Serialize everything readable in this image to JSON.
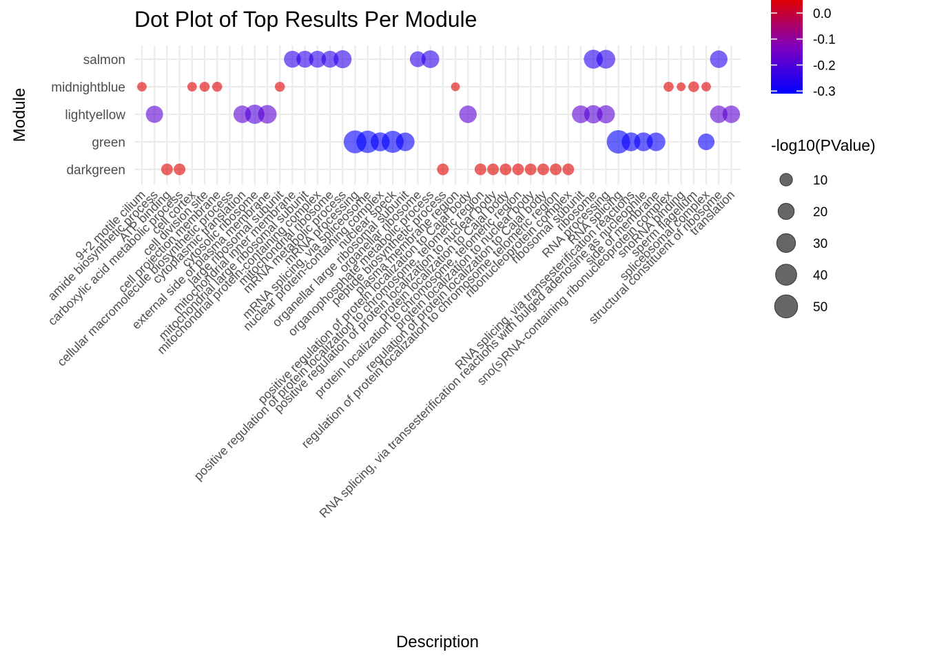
{
  "chart_data": {
    "type": "scatter",
    "title": "Dot Plot of Top Results Per Module",
    "xlabel": "Description",
    "ylabel": "Module",
    "modules": [
      "darkgreen",
      "green",
      "lightyellow",
      "midnightblue",
      "salmon"
    ],
    "categories": [
      "9+2 motile cilium",
      "amide biosynthetic process",
      "ATP binding",
      "carboxylic acid metabolic process",
      "cell cortex",
      "cell division site",
      "cell projection membrane",
      "cellular macromolecule biosynthetic process",
      "cytoplasmic translation",
      "cytosolic ribosome",
      "external side of plasma membrane",
      "large ribosomal subunit",
      "mitochondrial inner membrane",
      "mitochondrial large ribosomal subunit",
      "mitochondrial protein-containing complex",
      "mitochondrial ribosome",
      "mRNA metabolic process",
      "mRNA processing",
      "mRNA splicing, via spliceosome",
      "nuclear protein-containing complex",
      "nuclear speck",
      "organellar large ribosomal subunit",
      "organellar ribosome",
      "organophosphate metabolic process",
      "peptide biosynthetic process",
      "plasma membrane region",
      "positive regulation of protein localization to Cajal body",
      "positive regulation of protein localization to chromosome, telomeric region",
      "positive regulation of protein localization to nuclear body",
      "protein localization to Cajal body",
      "protein localization to chromosome, telomeric region",
      "protein localization to nuclear body",
      "regulation of protein localization to Cajal body",
      "regulation of protein localization to chromosome, telomeric region",
      "ribonucleoprotein complex",
      "ribosomal subunit",
      "ribosome",
      "RNA processing",
      "RNA splicing",
      "RNA splicing, via transesterification reactions",
      "RNA splicing, via transesterification reactions with bulged adenosine as nucleophile",
      "side of membrane",
      "sno(s)RNA-containing ribonucleoprotein complex",
      "snoRNA binding",
      "sperm flagellum",
      "spliceosomal complex",
      "structural constituent of ribosome",
      "translation"
    ],
    "points": [
      {
        "x": "9+2 motile cilium",
        "module": "midnightblue",
        "size": 4,
        "color": 0.05
      },
      {
        "x": "amide biosynthetic process",
        "module": "lightyellow",
        "size": 24,
        "color": -0.18
      },
      {
        "x": "ATP binding",
        "module": "darkgreen",
        "size": 8,
        "color": 0.05
      },
      {
        "x": "carboxylic acid metabolic process",
        "module": "darkgreen",
        "size": 8,
        "color": 0.05
      },
      {
        "x": "cell cortex",
        "module": "midnightblue",
        "size": 4,
        "color": 0.05
      },
      {
        "x": "cell division site",
        "module": "midnightblue",
        "size": 5,
        "color": 0.05
      },
      {
        "x": "cell projection membrane",
        "module": "midnightblue",
        "size": 5,
        "color": 0.05
      },
      {
        "x": "cytoplasmic translation",
        "module": "lightyellow",
        "size": 25,
        "color": -0.18
      },
      {
        "x": "cytosolic ribosome",
        "module": "lightyellow",
        "size": 32,
        "color": -0.2
      },
      {
        "x": "external side of plasma membrane",
        "module": "lightyellow",
        "size": 29,
        "color": -0.18
      },
      {
        "x": "large ribosomal subunit",
        "module": "midnightblue",
        "size": 5,
        "color": 0.05
      },
      {
        "x": "mitochondrial inner membrane",
        "module": "salmon",
        "size": 23,
        "color": -0.25
      },
      {
        "x": "mitochondrial large ribosomal subunit",
        "module": "salmon",
        "size": 23,
        "color": -0.25
      },
      {
        "x": "mitochondrial protein-containing complex",
        "module": "salmon",
        "size": 23,
        "color": -0.25
      },
      {
        "x": "mitochondrial ribosome",
        "module": "salmon",
        "size": 23,
        "color": -0.25
      },
      {
        "x": "mRNA metabolic process",
        "module": "salmon",
        "size": 27,
        "color": -0.25
      },
      {
        "x": "mRNA processing",
        "module": "green",
        "size": 49,
        "color": -0.3
      },
      {
        "x": "mRNA splicing, via spliceosome",
        "module": "green",
        "size": 47,
        "color": -0.31
      },
      {
        "x": "nuclear protein-containing complex",
        "module": "green",
        "size": 31,
        "color": -0.3
      },
      {
        "x": "nuclear speck",
        "module": "green",
        "size": 45,
        "color": -0.31
      },
      {
        "x": "organellar large ribosomal subunit",
        "module": "green",
        "size": 29,
        "color": -0.3
      },
      {
        "x": "organellar ribosome",
        "module": "salmon",
        "size": 19,
        "color": -0.25
      },
      {
        "x": "organophosphate metabolic process",
        "module": "salmon",
        "size": 26,
        "color": -0.25
      },
      {
        "x": "peptide biosynthetic process",
        "module": "darkgreen",
        "size": 8,
        "color": 0.05
      },
      {
        "x": "plasma membrane region",
        "module": "midnightblue",
        "size": 3,
        "color": 0.05
      },
      {
        "x": "positive regulation of protein localization to Cajal body",
        "module": "lightyellow",
        "size": 25,
        "color": -0.18
      },
      {
        "x": "positive regulation of protein localization to chromosome, telomeric region",
        "module": "darkgreen",
        "size": 8,
        "color": 0.05
      },
      {
        "x": "positive regulation of protein localization to nuclear body",
        "module": "darkgreen",
        "size": 8,
        "color": 0.05
      },
      {
        "x": "protein localization to Cajal body",
        "module": "darkgreen",
        "size": 8,
        "color": 0.05
      },
      {
        "x": "protein localization to chromosome, telomeric region",
        "module": "darkgreen",
        "size": 8,
        "color": 0.05
      },
      {
        "x": "protein localization to nuclear body",
        "module": "darkgreen",
        "size": 8,
        "color": 0.05
      },
      {
        "x": "regulation of protein localization to Cajal body",
        "module": "darkgreen",
        "size": 8,
        "color": 0.05
      },
      {
        "x": "regulation of protein localization to chromosome, telomeric region",
        "module": "darkgreen",
        "size": 8,
        "color": 0.05
      },
      {
        "x": "ribonucleoprotein complex",
        "module": "darkgreen",
        "size": 8,
        "color": 0.05
      },
      {
        "x": "ribosomal subunit",
        "module": "lightyellow",
        "size": 26,
        "color": -0.18
      },
      {
        "x": "ribosome",
        "module": "salmon",
        "size": 31,
        "color": -0.26
      },
      {
        "x": "ribosome",
        "module": "lightyellow",
        "size": 28,
        "color": -0.19
      },
      {
        "x": "RNA processing",
        "module": "salmon",
        "size": 30,
        "color": -0.25
      },
      {
        "x": "RNA processing",
        "module": "lightyellow",
        "size": 27,
        "color": -0.18
      },
      {
        "x": "RNA splicing",
        "module": "green",
        "size": 52,
        "color": -0.31
      },
      {
        "x": "RNA splicing, via transesterification reactions",
        "module": "green",
        "size": 30,
        "color": -0.3
      },
      {
        "x": "RNA splicing, via transesterification reactions with bulged adenosine as nucleophile",
        "module": "green",
        "size": 30,
        "color": -0.3
      },
      {
        "x": "side of membrane",
        "module": "green",
        "size": 29,
        "color": -0.3
      },
      {
        "x": "sno(s)RNA-containing ribonucleoprotein complex",
        "module": "midnightblue",
        "size": 5,
        "color": 0.05
      },
      {
        "x": "snoRNA binding",
        "module": "midnightblue",
        "size": 3,
        "color": 0.05
      },
      {
        "x": "sperm flagellum",
        "module": "midnightblue",
        "size": 6,
        "color": 0.05
      },
      {
        "x": "spliceosomal complex",
        "module": "midnightblue",
        "size": 4,
        "color": 0.05
      },
      {
        "x": "spliceosomal complex",
        "module": "green",
        "size": 22,
        "color": -0.3
      },
      {
        "x": "structural constituent of ribosome",
        "module": "salmon",
        "size": 25,
        "color": -0.26
      },
      {
        "x": "structural constituent of ribosome",
        "module": "lightyellow",
        "size": 25,
        "color": -0.18
      },
      {
        "x": "translation",
        "module": "lightyellow",
        "size": 25,
        "color": -0.18
      }
    ],
    "color_legend": {
      "title": "",
      "ticks": [
        0.0,
        -0.1,
        -0.2,
        -0.3
      ],
      "tick_labels": [
        "0.0",
        "-0.1",
        "-0.2",
        "-0.3"
      ],
      "range": [
        -0.31,
        0.05
      ],
      "low_color": "#0000ff",
      "mid_color": "#8000c0",
      "high_color": "#e00000"
    },
    "size_legend": {
      "title": "-log10(PValue)",
      "values": [
        10,
        20,
        30,
        40,
        50
      ],
      "labels": [
        "10",
        "20",
        "30",
        "40",
        "50"
      ]
    },
    "point_alpha": 0.6,
    "grid": true,
    "legend_position": "right"
  }
}
